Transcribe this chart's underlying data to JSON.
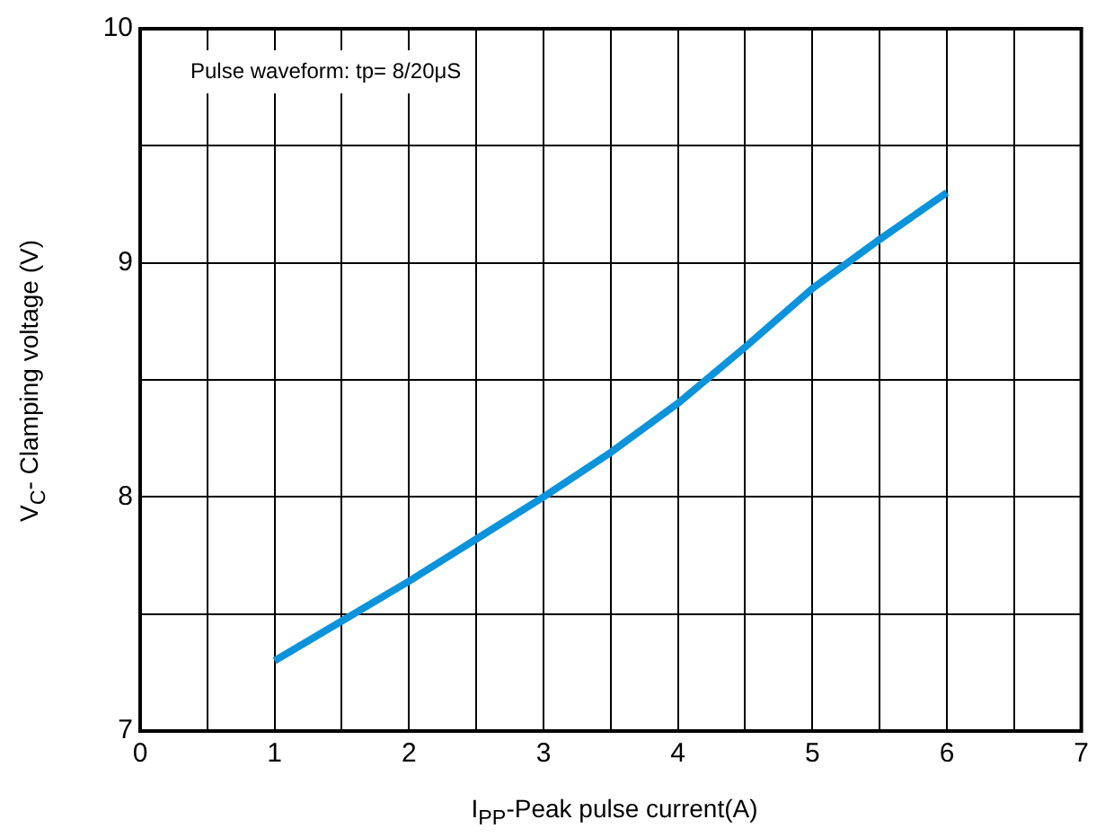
{
  "chart_data": {
    "type": "line",
    "xlabel": "I$_{PP}$-Peak pulse current(A)",
    "ylabel": "V$_{C}$- Clamping voltage (V)",
    "annotations": [
      "Pulse waveform: tp= 8/20μS"
    ],
    "x": [
      1,
      1.5,
      2,
      2.5,
      3,
      3.5,
      4,
      4.5,
      5,
      5.5,
      6
    ],
    "series": [
      {
        "color": "#0b93dc",
        "values": [
          7.3,
          7.47,
          7.64,
          7.82,
          8.0,
          8.19,
          8.4,
          8.64,
          8.89,
          9.1,
          9.3
        ]
      }
    ],
    "xlim": [
      0,
      7
    ],
    "xticks": [
      0,
      {
        "value": 0.5,
        "label": null
      },
      1,
      {
        "value": 1.5,
        "label": null
      },
      2,
      {
        "value": 2.5,
        "label": null
      },
      3,
      {
        "value": 3.5,
        "label": null
      },
      4,
      {
        "value": 4.5,
        "label": null
      },
      5,
      {
        "value": 5.5,
        "label": null
      },
      6,
      {
        "value": 6.5,
        "label": null
      },
      7
    ],
    "ylim": [
      7,
      10
    ],
    "yticks": [
      7,
      {
        "value": 7.5,
        "label": null
      },
      8,
      {
        "value": 8.5,
        "label": null
      },
      9,
      {
        "value": 9.5,
        "label": null
      },
      10
    ],
    "grid": true,
    "legend": false,
    "marker": "none",
    "line_style": "solid"
  }
}
